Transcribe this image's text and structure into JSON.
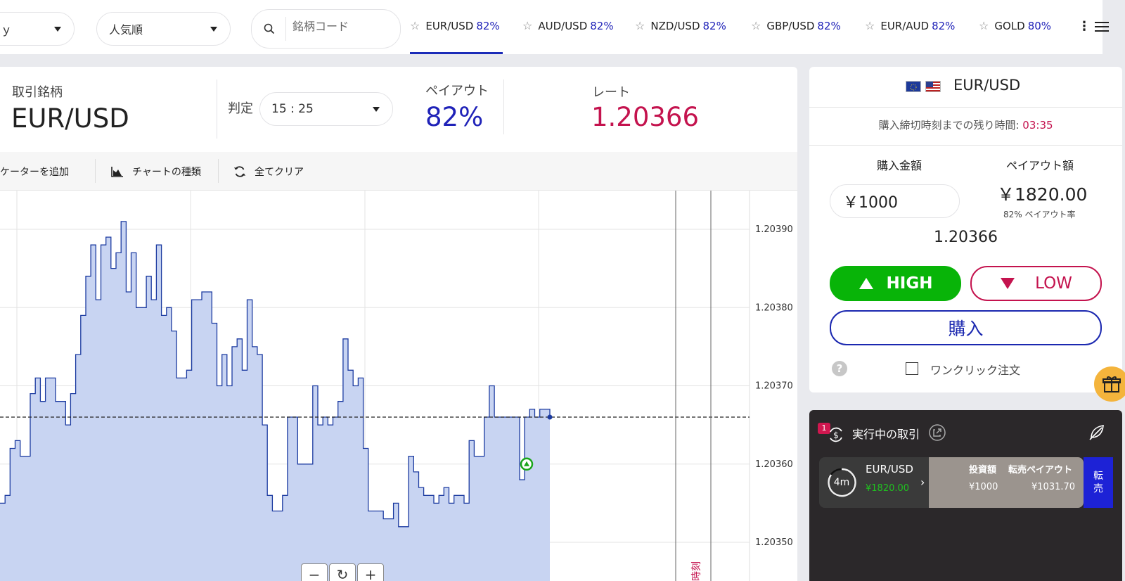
{
  "topbar": {
    "select1": {
      "value": "ｙ"
    },
    "select2": {
      "value": "人気順"
    },
    "search": {
      "placeholder": "銘柄コード"
    },
    "tabs": [
      {
        "symbol": "EUR/USD",
        "payout": "82%",
        "active": true
      },
      {
        "symbol": "AUD/USD",
        "payout": "82%"
      },
      {
        "symbol": "NZD/USD",
        "payout": "82%"
      },
      {
        "symbol": "GBP/USD",
        "payout": "82%"
      },
      {
        "symbol": "EUR/AUD",
        "payout": "82%"
      },
      {
        "symbol": "GOLD",
        "payout": "80%"
      }
    ],
    "menu_dots": "⋮"
  },
  "info": {
    "symbol_label": "取引銘柄",
    "symbol": "EUR/USD",
    "judge_label": "判定",
    "judge_time": "15 : 25",
    "payout_label": "ペイアウト",
    "payout": "82%",
    "rate_label": "レート",
    "rate": "1.20366"
  },
  "toolbar": {
    "add_indicator": "ケーターを追加",
    "chart_type": "チャートの種類",
    "clear_all": "全てクリア"
  },
  "chart": {
    "y_ticks": [
      "1.20390",
      "1.20380",
      "1.20370",
      "1.20360",
      "1.20350"
    ],
    "current_rate": "1.20366",
    "deadline_label": "時刻",
    "zoom": {
      "minus": "−",
      "reset": "↻",
      "plus": "+"
    }
  },
  "chart_data": {
    "type": "area",
    "ylim": [
      1.20348,
      1.20397
    ],
    "y_ticks": [
      1.2039,
      1.2038,
      1.2037,
      1.2036,
      1.2035
    ],
    "current": 1.20366,
    "values": [
      1.20355,
      1.20356,
      1.20362,
      1.20363,
      1.20361,
      1.20361,
      1.20369,
      1.20371,
      1.20368,
      1.20371,
      1.20371,
      1.20368,
      1.20368,
      1.20365,
      1.20369,
      1.20374,
      1.20379,
      1.20384,
      1.20388,
      1.20381,
      1.20388,
      1.20389,
      1.20385,
      1.20387,
      1.20391,
      1.20382,
      1.20387,
      1.2038,
      1.2038,
      1.20384,
      1.20381,
      1.20388,
      1.20379,
      1.2038,
      1.20377,
      1.20371,
      1.20371,
      1.20372,
      1.20381,
      1.20381,
      1.20382,
      1.20382,
      1.20378,
      1.2037,
      1.20374,
      1.2037,
      1.20375,
      1.20376,
      1.20372,
      1.20381,
      1.20375,
      1.20374,
      1.20365,
      1.20356,
      1.20354,
      1.20354,
      1.20356,
      1.20366,
      1.20366,
      1.2036,
      1.2036,
      1.2036,
      1.2037,
      1.20365,
      1.20366,
      1.20365,
      1.20366,
      1.20368,
      1.20376,
      1.20372,
      1.2037,
      1.20371,
      1.20362,
      1.20354,
      1.20354,
      1.20354,
      1.20353,
      1.20353,
      1.20355,
      1.20352,
      1.20352,
      1.20361,
      1.20359,
      1.20357,
      1.20356,
      1.20356,
      1.20355,
      1.20356,
      1.20357,
      1.20355,
      1.20356,
      1.20356,
      1.20355,
      1.20363,
      1.20361,
      1.20361,
      1.20366,
      1.2037,
      1.20366,
      1.20366,
      1.20366,
      1.20366,
      1.20366,
      1.20358,
      1.20366,
      1.20367,
      1.20366,
      1.20367,
      1.20367,
      1.20366
    ],
    "trade_marker": {
      "type": "high",
      "value": 1.2036
    }
  },
  "trade_panel": {
    "symbol": "EUR/USD",
    "flags": [
      "eu-flag-icon",
      "us-flag-icon"
    ],
    "deadline_text": "購入締切時刻までの残り時間:",
    "deadline_remaining": "03:35",
    "amount_label": "購入金額",
    "amount_value": "￥1000",
    "payout_amount_label": "ペイアウト額",
    "payout_amount": "￥1820.00",
    "payout_rate": "82% ペイアウト率",
    "rate": "1.20366",
    "high": "HIGH",
    "low": "LOW",
    "buy": "購入",
    "help": "?",
    "one_click": "ワンクリック注文"
  },
  "running": {
    "badge": "1",
    "title": "実行中の取引",
    "trade": {
      "time_left": "4m",
      "symbol": "EUR/USD",
      "payout": "¥1820.00",
      "invest_label": "投資額",
      "resale_label": "転売ペイアウト",
      "invest": "¥1000",
      "resale": "¥1031.70",
      "resale_btn": "転\n売"
    }
  },
  "colors": {
    "accent_blue": "#1f22b8",
    "rate_red": "#c4134e",
    "high_green": "#08b408",
    "chart_fill": "#c8d4f2",
    "chart_line": "#1b3aa0"
  }
}
